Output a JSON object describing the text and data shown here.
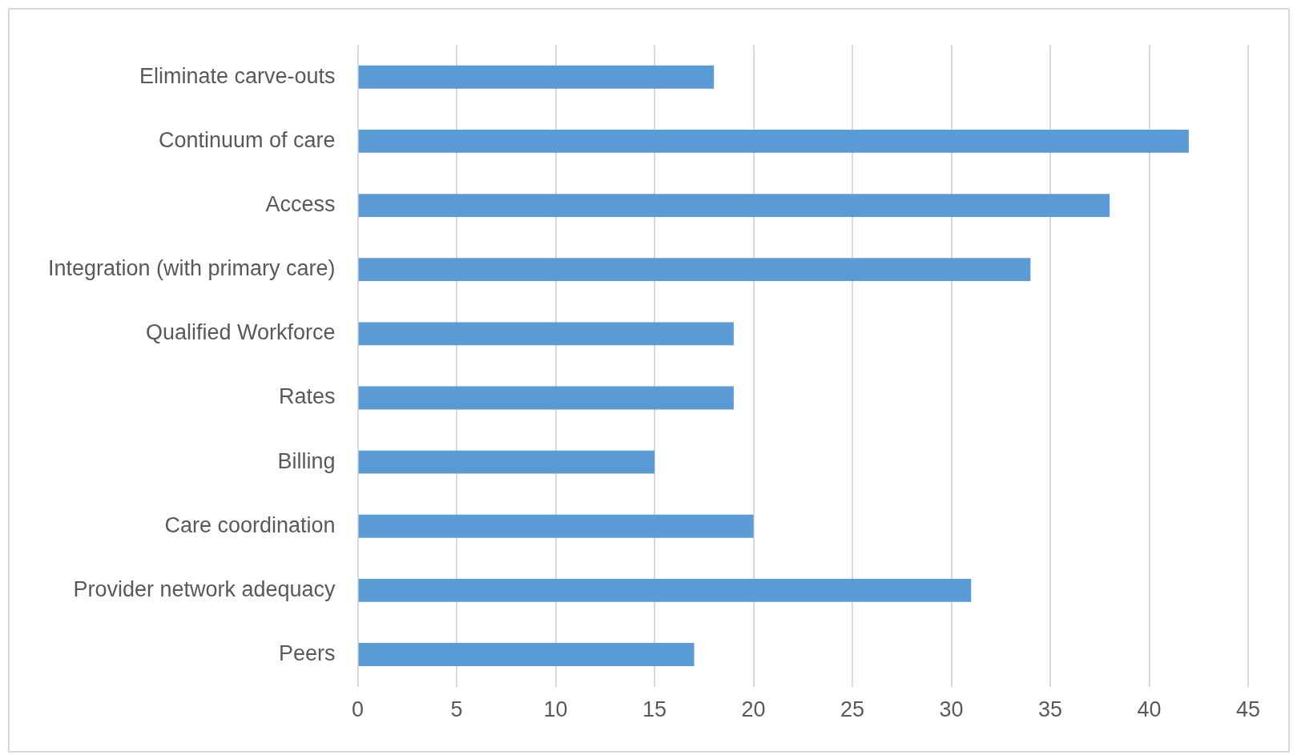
{
  "chart_data": {
    "type": "bar",
    "orientation": "horizontal",
    "categories": [
      "Eliminate carve-outs",
      "Continuum of care",
      "Access",
      "Integration (with primary care)",
      "Qualified Workforce",
      "Rates",
      "Billing",
      "Care coordination",
      "Provider network adequacy",
      "Peers"
    ],
    "values": [
      18,
      42,
      38,
      34,
      19,
      19,
      15,
      20,
      31,
      17
    ],
    "color": "#5b9bd5",
    "xlim": [
      0,
      45
    ],
    "xticks": [
      0,
      5,
      10,
      15,
      20,
      25,
      30,
      35,
      40,
      45
    ],
    "grid": "x",
    "legend": false
  }
}
